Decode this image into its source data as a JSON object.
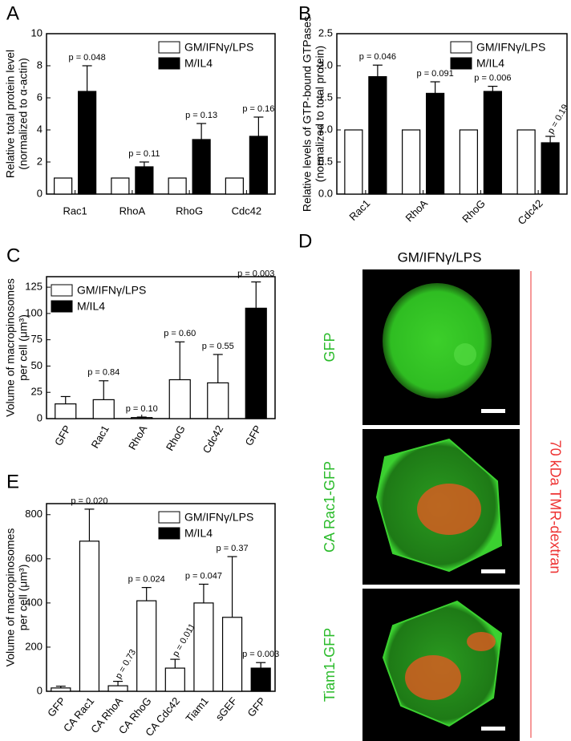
{
  "chart_data": [
    {
      "type": "bar",
      "panel": "A",
      "y_label": [
        "Relative total protein level",
        "(normalized to α-actin)"
      ],
      "categories": [
        "Rac1",
        "RhoA",
        "RhoG",
        "Cdc42"
      ],
      "series": [
        {
          "name": "GM/IFNγ/LPS",
          "color": "#ffffff",
          "values": [
            1,
            1,
            1,
            1
          ]
        },
        {
          "name": "M/IL4",
          "color": "#000000",
          "values": [
            6.4,
            1.7,
            3.4,
            3.6
          ],
          "errors": [
            1.6,
            0.3,
            1.0,
            1.2
          ]
        }
      ],
      "p_labels": [
        "p = 0.048",
        "p = 0.11",
        "p = 0.13",
        "p = 0.16"
      ],
      "ylim": [
        0,
        10
      ],
      "yticks": [
        0,
        2,
        4,
        6,
        8,
        10
      ],
      "legend": "upper right"
    },
    {
      "type": "bar",
      "panel": "B",
      "y_label": [
        "Relative levels of GTP-bound GTPases",
        "(normalized to total protein)"
      ],
      "categories": [
        "Rac1",
        "RhoA",
        "RhoG",
        "Cdc42"
      ],
      "series": [
        {
          "name": "GM/IFNγ/LPS",
          "color": "#ffffff",
          "values": [
            1,
            1,
            1,
            1
          ]
        },
        {
          "name": "M/IL4",
          "color": "#000000",
          "values": [
            1.83,
            1.57,
            1.6,
            0.8
          ],
          "errors": [
            0.18,
            0.18,
            0.08,
            0.1
          ]
        }
      ],
      "p_labels": [
        "p = 0.046",
        "p = 0.091",
        "p = 0.006",
        "p = 0.19"
      ],
      "ylim": [
        0,
        2.5
      ],
      "yticks": [
        {
          "value": 0,
          "label": "0.0"
        },
        0.5,
        {
          "value": 1,
          "label": "1.0"
        },
        1.5,
        {
          "value": 2,
          "label": "2.0"
        },
        2.5
      ],
      "legend": "upper right"
    },
    {
      "type": "bar",
      "panel": "C",
      "y_label": [
        "Volume of macropinosomes",
        "per cell (μm³)"
      ],
      "categories": [
        "GFP",
        "Rac1",
        "RhoA",
        "RhoG",
        "Cdc42",
        "GFP"
      ],
      "series": [
        {
          "name": "GM/IFNγ/LPS",
          "color": "#ffffff",
          "values": [
            14,
            18,
            1,
            37,
            34,
            null
          ],
          "errors": [
            7,
            18,
            0.5,
            36,
            27,
            null
          ]
        },
        {
          "name": "M/IL4",
          "color": "#000000",
          "values": [
            null,
            null,
            null,
            null,
            null,
            105
          ],
          "errors": [
            null,
            null,
            null,
            null,
            null,
            25
          ]
        }
      ],
      "p_labels": [
        null,
        "p = 0.84",
        "p = 0.10",
        "p = 0.60",
        "p = 0.55",
        "p = 0.003"
      ],
      "ylim": [
        0,
        135
      ],
      "yticks": [
        0,
        25,
        50,
        75,
        100,
        125
      ],
      "legend": "upper left"
    },
    {
      "type": "bar",
      "panel": "E",
      "y_label": [
        "Volume of macropinosomes",
        "per cell (μm³)"
      ],
      "categories": [
        "GFP",
        "CA Rac1",
        "CA RhoA",
        "CA RhoG",
        "CA Cdc42",
        "Tiam1",
        "sGEF",
        "GFP"
      ],
      "series": [
        {
          "name": "GM/IFNγ/LPS",
          "color": "#ffffff",
          "values": [
            15,
            680,
            25,
            410,
            105,
            400,
            335,
            null
          ],
          "errors": [
            8,
            145,
            20,
            60,
            40,
            85,
            275,
            null
          ]
        },
        {
          "name": "M/IL4",
          "color": "#000000",
          "values": [
            null,
            null,
            null,
            null,
            null,
            null,
            null,
            105
          ],
          "errors": [
            null,
            null,
            null,
            null,
            null,
            null,
            null,
            25
          ]
        }
      ],
      "p_labels": [
        null,
        "p = 0.020",
        "p = 0.73",
        "p = 0.024",
        "p = 0.011",
        "p = 0.047",
        "p = 0.37",
        "p = 0.003"
      ],
      "ylim": [
        0,
        850
      ],
      "yticks": [
        0,
        200,
        400,
        600,
        800
      ],
      "legend": "upper right"
    }
  ],
  "panel_d": {
    "panel": "D",
    "title": "GM/IFNγ/LPS",
    "rows": [
      "GFP",
      "CA Rac1-GFP",
      "Tiam1-GFP"
    ],
    "side_label": "70 kDa TMR-dextran"
  }
}
